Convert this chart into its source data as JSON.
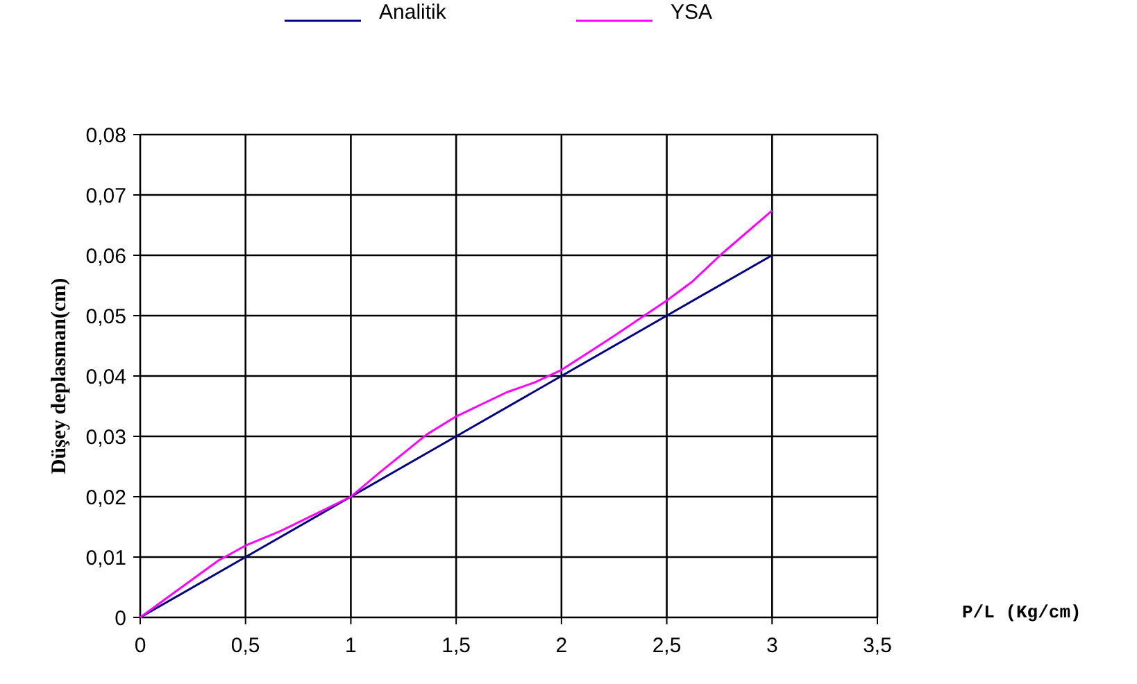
{
  "chart_data": {
    "type": "line",
    "xlabel": "P/L (Kg/cm)",
    "ylabel": "Düşey deplasman(cm)",
    "xlim": [
      0,
      3.5
    ],
    "xticks": [
      {
        "value": 0,
        "label": "0"
      },
      {
        "value": 0.5,
        "label": "0,5"
      },
      {
        "value": 1,
        "label": "1"
      },
      {
        "value": 1.5,
        "label": "1,5"
      },
      {
        "value": 2,
        "label": "2"
      },
      {
        "value": 2.5,
        "label": "2,5"
      },
      {
        "value": 3,
        "label": "3"
      },
      {
        "value": 3.5,
        "label": "3,5"
      }
    ],
    "ylim": [
      0,
      0.08
    ],
    "yticks": [
      {
        "value": 0,
        "label": "0"
      },
      {
        "value": 0.01,
        "label": "0,01"
      },
      {
        "value": 0.02,
        "label": "0,02"
      },
      {
        "value": 0.03,
        "label": "0,03"
      },
      {
        "value": 0.04,
        "label": "0,04"
      },
      {
        "value": 0.05,
        "label": "0,05"
      },
      {
        "value": 0.06,
        "label": "0,06"
      },
      {
        "value": 0.07,
        "label": "0,07"
      },
      {
        "value": 0.08,
        "label": "0,08"
      }
    ],
    "grid": true,
    "legend": "top",
    "marker": "none",
    "line_style": "solid",
    "series": [
      {
        "name": "Analitik",
        "color": "#000080",
        "x": [
          0,
          0.5,
          1,
          1.5,
          2,
          2.5,
          3
        ],
        "values": [
          0,
          0.01,
          0.02,
          0.03,
          0.04,
          0.05,
          0.06
        ]
      },
      {
        "name": "YSA",
        "color": "#ff00ff",
        "x": [
          0,
          0.37,
          0.5,
          0.66,
          0.86,
          1,
          1.14,
          1.36,
          1.5,
          1.74,
          1.87,
          2,
          2.24,
          2.5,
          2.62,
          2.76,
          3
        ],
        "values": [
          0,
          0.0094,
          0.0119,
          0.0142,
          0.0176,
          0.02,
          0.0241,
          0.0303,
          0.0333,
          0.0373,
          0.0389,
          0.041,
          0.0464,
          0.0525,
          0.0556,
          0.0602,
          0.0674
        ]
      }
    ]
  }
}
